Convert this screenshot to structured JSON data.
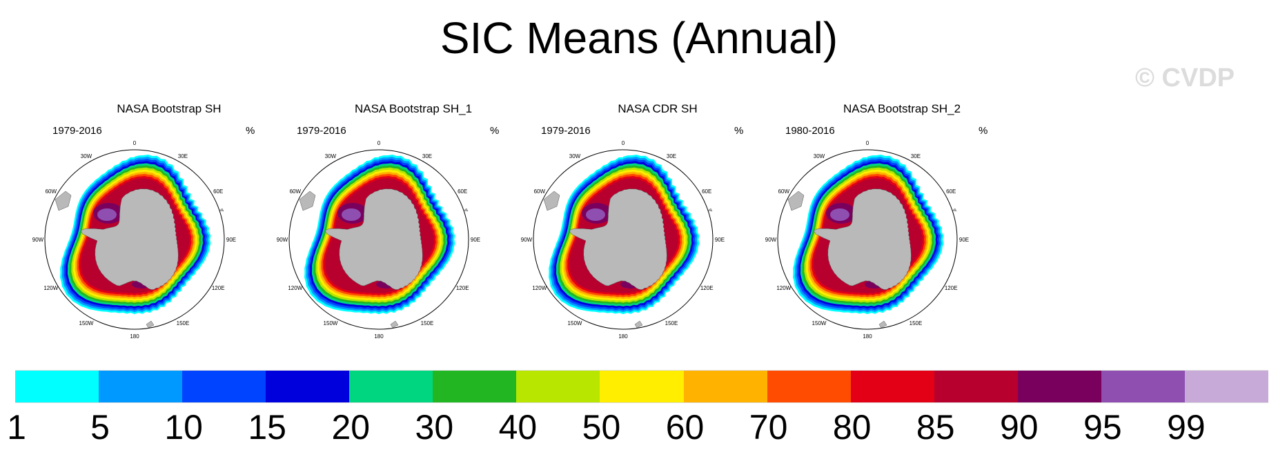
{
  "title": "SIC Means (Annual)",
  "watermark": "© CVDP",
  "chart_data": [
    {
      "type": "heatmap",
      "title": "NASA Bootstrap SH",
      "years": "1979-2016",
      "units": "%",
      "projection": "south-polar-stereographic"
    },
    {
      "type": "heatmap",
      "title": "NASA Bootstrap SH_1",
      "years": "1979-2016",
      "units": "%",
      "projection": "south-polar-stereographic"
    },
    {
      "type": "heatmap",
      "title": "NASA CDR SH",
      "years": "1979-2016",
      "units": "%",
      "projection": "south-polar-stereographic"
    },
    {
      "type": "heatmap",
      "title": "NASA Bootstrap SH_2",
      "years": "1980-2016",
      "units": "%",
      "projection": "south-polar-stereographic"
    }
  ],
  "map_labels": {
    "lon_0": "0",
    "lon_30e": "30E",
    "lon_60e": "60E",
    "lon_90e": "90E",
    "lon_120e": "120E",
    "lon_150e": "150E",
    "lon_180": "180",
    "lon_150w": "150W",
    "lon_120w": "120W",
    "lon_90w": "90W",
    "lon_60w": "60W",
    "lon_30w": "30W"
  },
  "colorbar": {
    "levels": [
      "1",
      "5",
      "10",
      "15",
      "20",
      "30",
      "40",
      "50",
      "60",
      "70",
      "80",
      "85",
      "90",
      "95",
      "99"
    ],
    "colors": [
      "#00ffff",
      "#0099ff",
      "#0044ff",
      "#0000dd",
      "#00d680",
      "#22b722",
      "#b8e600",
      "#ffee00",
      "#ffb300",
      "#ff4c00",
      "#e30016",
      "#b8002e",
      "#7a005e",
      "#8e4fb0",
      "#c8aad8"
    ]
  },
  "colors": {
    "land": "#b9b9b9",
    "ring_band_outer": [
      "#00ffff",
      "#0099ff",
      "#0044ff",
      "#0000dd"
    ],
    "ring_band_inner": [
      "#00d680",
      "#22b722",
      "#b8e600",
      "#ffee00",
      "#ffb300",
      "#ff4c00",
      "#e30016",
      "#b8002e"
    ]
  }
}
